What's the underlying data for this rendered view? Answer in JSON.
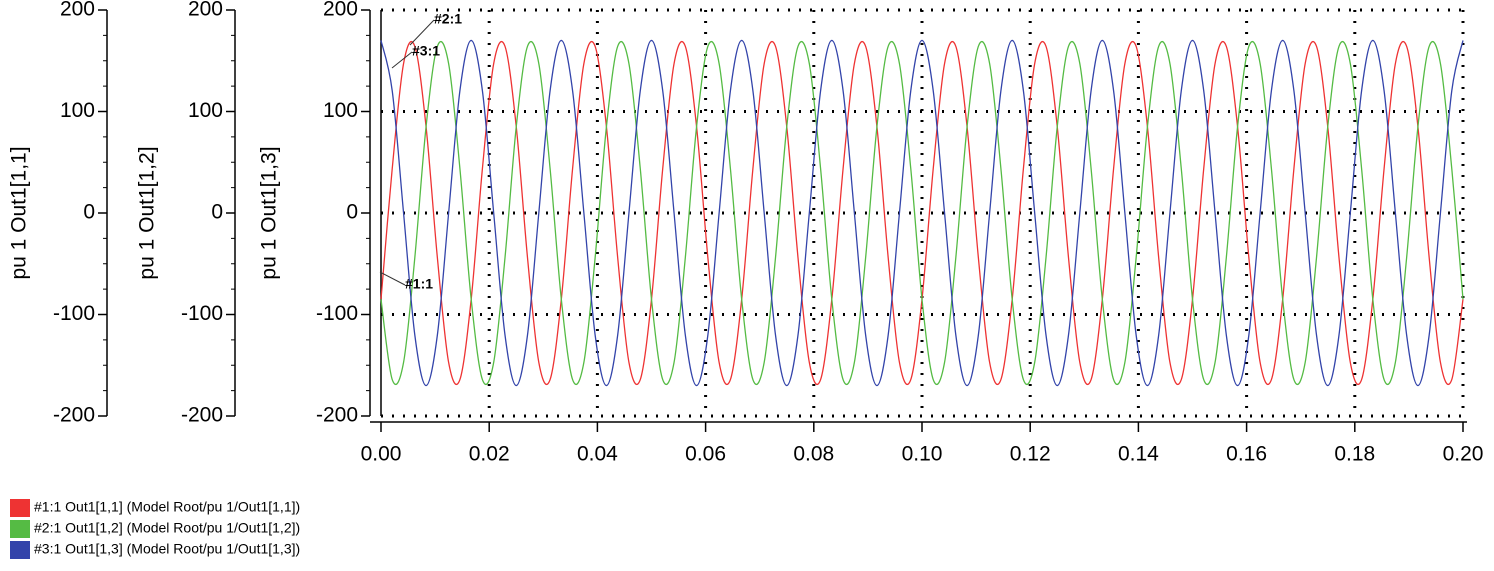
{
  "chart_data": {
    "type": "line",
    "grid": true,
    "y_axes": [
      {
        "label": "pu 1 Out1[1,1]",
        "ylim": [
          -200,
          200
        ],
        "yticks": [
          200,
          100,
          0,
          -100,
          -200
        ]
      },
      {
        "label": "pu 1 Out1[1,2]",
        "ylim": [
          -200,
          200
        ],
        "yticks": [
          200,
          100,
          0,
          -100,
          -200
        ]
      },
      {
        "label": "pu 1 Out1[1,3]",
        "ylim": [
          -200,
          200
        ],
        "yticks": [
          200,
          100,
          0,
          -100,
          -200
        ]
      }
    ],
    "xlim": [
      0,
      0.2
    ],
    "xticks": [
      {
        "value": 0,
        "label": "0.00"
      },
      0.02,
      0.04,
      0.06,
      0.08,
      {
        "value": 0.1,
        "label": "0.10"
      },
      0.12,
      0.14,
      0.16,
      0.18,
      {
        "value": 0.2,
        "label": "0.20"
      }
    ],
    "annotations": [
      "#2:1",
      "#3:1",
      "#1:1"
    ],
    "x": [
      0,
      0.00208,
      0.00417,
      0.00625,
      0.00833,
      0.01042,
      0.0125,
      0.01458,
      0.01667,
      0.01875,
      0.02083,
      0.02292,
      0.025,
      0.02708,
      0.02917,
      0.03125,
      0.03333,
      0.03542,
      0.0375,
      0.03958,
      0.04167,
      0.04375,
      0.04583,
      0.04792,
      0.05,
      0.05208,
      0.05417,
      0.05625,
      0.05833,
      0.06042,
      0.0625,
      0.06458,
      0.06667,
      0.06875,
      0.07083,
      0.07292,
      0.075,
      0.07708,
      0.07917,
      0.08125,
      0.08333,
      0.08542,
      0.0875,
      0.08958,
      0.09167,
      0.09375,
      0.09583,
      0.09792,
      0.1,
      0.10208,
      0.10417,
      0.10625,
      0.10833,
      0.11042,
      0.1125,
      0.11458,
      0.11667,
      0.11875,
      0.12083,
      0.12292,
      0.125,
      0.12708,
      0.12917,
      0.13125,
      0.13333,
      0.13542,
      0.1375,
      0.13958,
      0.14167,
      0.14375,
      0.14583,
      0.14792,
      0.15,
      0.15208,
      0.15417,
      0.15625,
      0.15833,
      0.16042,
      0.1625,
      0.16458,
      0.16667,
      0.16875,
      0.17083,
      0.17292,
      0.175,
      0.17708,
      0.17917,
      0.18125,
      0.18333,
      0.18542,
      0.1875,
      0.18958,
      0.19167,
      0.19375,
      0.19583,
      0.19792,
      0.2
    ],
    "series": [
      {
        "name": "#1:1 Out1[1,1] (Model Root/pu 1/Out1[1,1])",
        "color": "#ee3333",
        "axis": 0,
        "values": [
          -85,
          44,
          147.2,
          164.2,
          85,
          -44,
          -147.2,
          -164.2,
          -85,
          44,
          147.2,
          164.2,
          85,
          -44,
          -147.2,
          -164.2,
          -85,
          44,
          147.2,
          164.2,
          85,
          -44,
          -147.2,
          -164.2,
          -85,
          44,
          147.2,
          164.2,
          85,
          -44,
          -147.2,
          -164.2,
          -85,
          44,
          147.2,
          164.2,
          85,
          -44,
          -147.2,
          -164.2,
          -85,
          44,
          147.2,
          164.2,
          85,
          -44,
          -147.2,
          -164.2,
          -85,
          44,
          147.2,
          164.2,
          85,
          -44,
          -147.2,
          -164.2,
          -85,
          44,
          147.2,
          164.2,
          85,
          -44,
          -147.2,
          -164.2,
          -85,
          44,
          147.2,
          164.2,
          85,
          -44,
          -147.2,
          -164.2,
          -85,
          44,
          147.2,
          164.2,
          85,
          -44,
          -147.2,
          -164.2,
          -85,
          44,
          147.2,
          164.2,
          85,
          -44,
          -147.2,
          -164.2,
          -85,
          44,
          147.2,
          164.2,
          85,
          -44,
          -147.2,
          -164.2,
          -85
        ]
      },
      {
        "name": "#2:1 Out1[1,2] (Model Root/pu 1/Out1[1,2])",
        "color": "#55bb44",
        "axis": 1,
        "values": [
          -85,
          -164.2,
          -147.2,
          -44,
          85,
          164.2,
          147.2,
          44,
          -85,
          -164.2,
          -147.2,
          -44,
          85,
          164.2,
          147.2,
          44,
          -85,
          -164.2,
          -147.2,
          -44,
          85,
          164.2,
          147.2,
          44,
          -85,
          -164.2,
          -147.2,
          -44,
          85,
          164.2,
          147.2,
          44,
          -85,
          -164.2,
          -147.2,
          -44,
          85,
          164.2,
          147.2,
          44,
          -85,
          -164.2,
          -147.2,
          -44,
          85,
          164.2,
          147.2,
          44,
          -85,
          -164.2,
          -147.2,
          -44,
          85,
          164.2,
          147.2,
          44,
          -85,
          -164.2,
          -147.2,
          -44,
          85,
          164.2,
          147.2,
          44,
          -85,
          -164.2,
          -147.2,
          -44,
          85,
          164.2,
          147.2,
          44,
          -85,
          -164.2,
          -147.2,
          -44,
          85,
          164.2,
          147.2,
          44,
          -85,
          -164.2,
          -147.2,
          -44,
          85,
          164.2,
          147.2,
          44,
          -85,
          -164.2,
          -147.2,
          -44,
          85,
          164.2,
          147.2,
          44,
          -85
        ]
      },
      {
        "name": "#3:1 Out1[1,3] (Model Root/pu 1/Out1[1,3])",
        "color": "#3344aa",
        "axis": 2,
        "values": [
          170,
          120.2,
          0,
          -120.2,
          -170,
          -120.2,
          0,
          120.2,
          170,
          120.2,
          0,
          -120.2,
          -170,
          -120.2,
          0,
          120.2,
          170,
          120.2,
          0,
          -120.2,
          -170,
          -120.2,
          0,
          120.2,
          170,
          120.2,
          0,
          -120.2,
          -170,
          -120.2,
          0,
          120.2,
          170,
          120.2,
          0,
          -120.2,
          -170,
          -120.2,
          0,
          120.2,
          170,
          120.2,
          0,
          -120.2,
          -170,
          -120.2,
          0,
          120.2,
          170,
          120.2,
          0,
          -120.2,
          -170,
          -120.2,
          0,
          120.2,
          170,
          120.2,
          0,
          -120.2,
          -170,
          -120.2,
          0,
          120.2,
          170,
          120.2,
          0,
          -120.2,
          -170,
          -120.2,
          0,
          120.2,
          170,
          120.2,
          0,
          -120.2,
          -170,
          -120.2,
          0,
          120.2,
          170,
          120.2,
          0,
          -120.2,
          -170,
          -120.2,
          0,
          120.2,
          170,
          120.2,
          0,
          -120.2,
          -170,
          -120.2,
          0,
          120.2,
          170
        ]
      }
    ]
  }
}
